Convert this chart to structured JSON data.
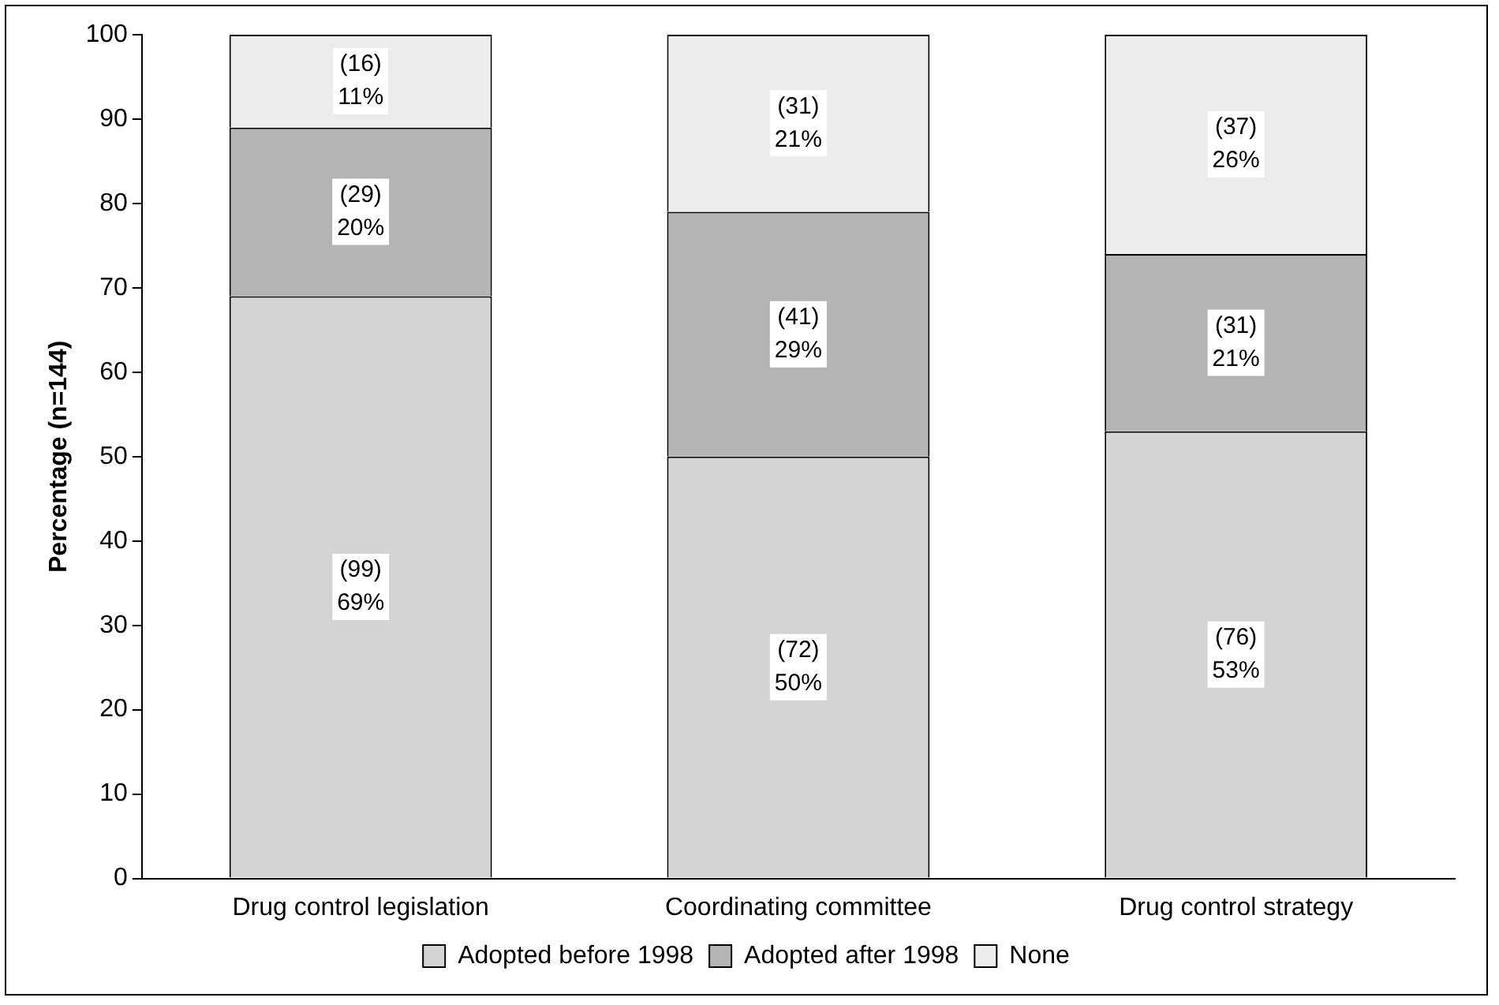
{
  "chart_data": {
    "type": "bar",
    "stacked": true,
    "ylabel": "Percentage (n=144)",
    "categories": [
      "Drug control legislation",
      "Coordinating committee",
      "Drug control strategy"
    ],
    "series": [
      {
        "name": "Adopted before 1998",
        "color": "#d4d4d4",
        "values": [
          69,
          50,
          53
        ],
        "value_labels": [
          "(99)\n69%",
          "(72)\n50%",
          "(76)\n53%"
        ]
      },
      {
        "name": "Adopted after 1998",
        "color": "#b4b4b4",
        "values": [
          20,
          29,
          21
        ],
        "value_labels": [
          "(29)\n20%",
          "(41)\n29%",
          "(31)\n21%"
        ]
      },
      {
        "name": "None",
        "color": "#ececec",
        "values": [
          11,
          21,
          26
        ],
        "value_labels": [
          "(16)\n11%",
          "(31)\n21%",
          "(37)\n26%"
        ]
      }
    ],
    "ylim": [
      0,
      100
    ],
    "yticks": [
      0,
      10,
      20,
      30,
      40,
      50,
      60,
      70,
      80,
      90,
      100
    ],
    "grid": false,
    "legend": "bottom"
  }
}
